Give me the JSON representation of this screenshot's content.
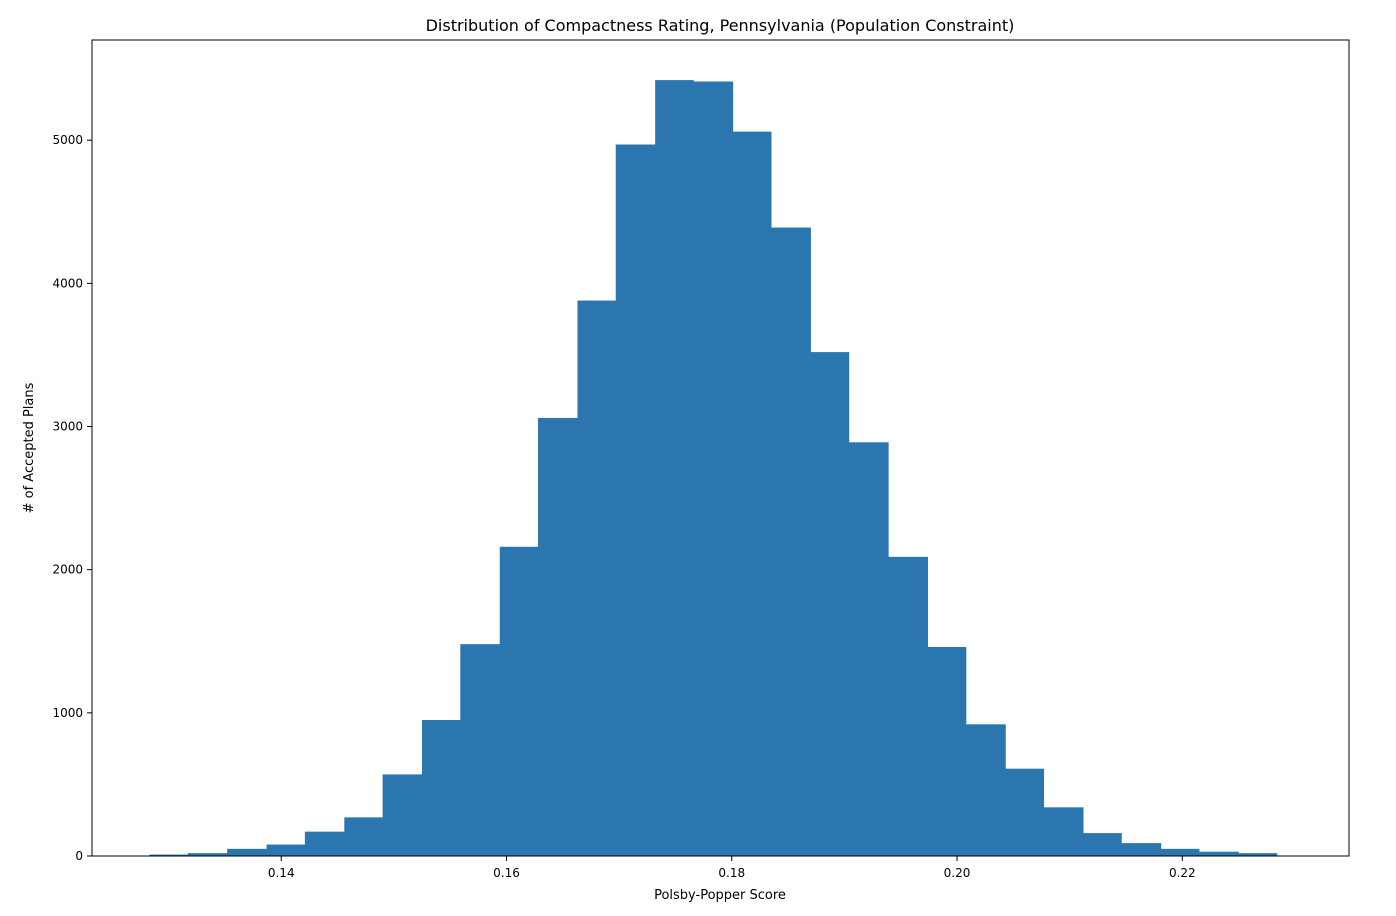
{
  "chart_data": {
    "type": "bar",
    "title": "Distribution of Compactness Rating, Pennsylvania (Population Constraint)",
    "xlabel": "Polsby-Popper Score",
    "ylabel": "# of Accepted Plans",
    "xlim": [
      0.1232,
      0.2348
    ],
    "ylim": [
      0,
      5700
    ],
    "xticks": [
      0.14,
      0.16,
      0.18,
      0.2,
      0.22
    ],
    "xtick_labels": [
      "0.14",
      "0.16",
      "0.18",
      "0.20",
      "0.22"
    ],
    "yticks": [
      0,
      1000,
      2000,
      3000,
      4000,
      5000
    ],
    "ytick_labels": [
      "0",
      "1000",
      "2000",
      "3000",
      "4000",
      "5000"
    ],
    "bin_edges": [
      0.1283,
      0.1317,
      0.1352,
      0.1387,
      0.1421,
      0.1456,
      0.149,
      0.1525,
      0.1559,
      0.1594,
      0.1628,
      0.1663,
      0.1697,
      0.1732,
      0.1766,
      0.1801,
      0.1835,
      0.187,
      0.1904,
      0.1939,
      0.1974,
      0.2008,
      0.2043,
      0.2077,
      0.2112,
      0.2146,
      0.2181,
      0.2215,
      0.225,
      0.2284
    ],
    "values": [
      10,
      20,
      50,
      80,
      170,
      270,
      570,
      950,
      1480,
      2160,
      3060,
      3880,
      4970,
      5420,
      5410,
      5060,
      4390,
      3520,
      2890,
      2090,
      1460,
      920,
      610,
      340,
      160,
      90,
      50,
      30,
      20
    ],
    "bar_color": "#2c76b0",
    "grid": false
  }
}
